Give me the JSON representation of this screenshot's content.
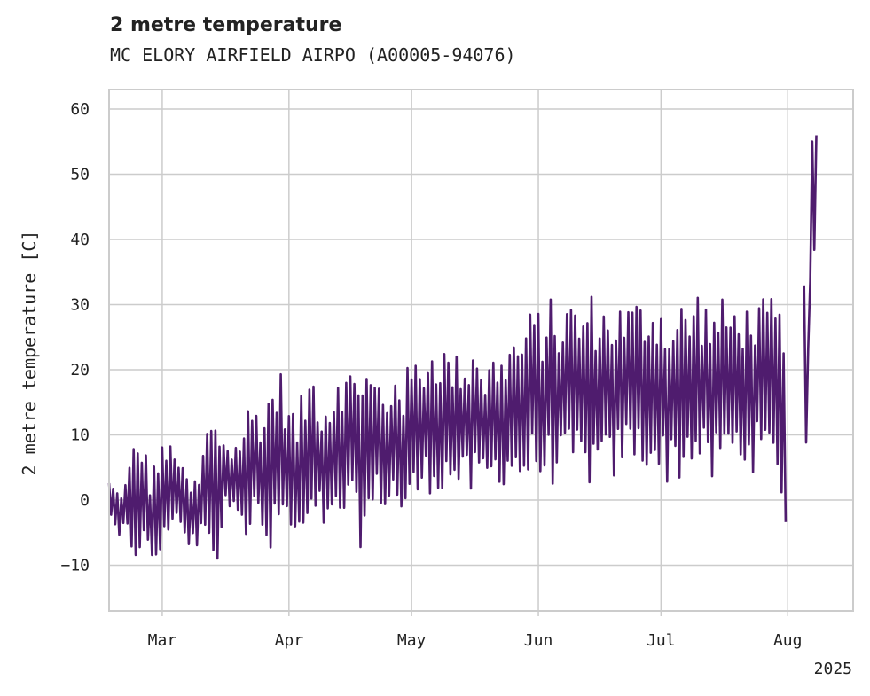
{
  "chart_data": {
    "type": "line",
    "title": "2 metre temperature",
    "subtitle": "MC ELORY AIRFIELD AIRPO (A00005-94076)",
    "xlabel": "",
    "ylabel": "2 metre temperature [C]",
    "year_label": "2025",
    "xlim": [
      "2025-02-16",
      "2025-08-17"
    ],
    "ylim": [
      -17,
      63
    ],
    "yticks": [
      -10,
      0,
      10,
      20,
      30,
      40,
      50,
      60
    ],
    "ytick_labels": [
      "−10",
      "0",
      "10",
      "20",
      "30",
      "40",
      "50",
      "60"
    ],
    "xticks": [
      "2025-03-01",
      "2025-04-01",
      "2025-05-01",
      "2025-06-01",
      "2025-07-01",
      "2025-08-01"
    ],
    "xtick_labels": [
      "Mar",
      "Apr",
      "May",
      "Jun",
      "Jul",
      "Aug"
    ],
    "grid": true,
    "legend": "none",
    "colors": {
      "line": "#4f1c6e",
      "grid": "#cccccc",
      "frame": "#cccccc"
    },
    "series": [
      {
        "x": [
          "2025-02-16",
          "2025-02-18",
          "2025-02-20",
          "2025-02-22",
          "2025-02-24",
          "2025-02-26",
          "2025-02-28",
          "2025-03-02",
          "2025-03-04",
          "2025-03-06",
          "2025-03-08",
          "2025-03-10",
          "2025-03-12",
          "2025-03-14",
          "2025-03-16",
          "2025-03-18",
          "2025-03-20",
          "2025-03-22",
          "2025-03-24",
          "2025-03-26",
          "2025-03-28",
          "2025-03-30",
          "2025-04-01",
          "2025-04-03",
          "2025-04-05",
          "2025-04-07",
          "2025-04-09",
          "2025-04-11",
          "2025-04-13",
          "2025-04-15",
          "2025-04-17",
          "2025-04-19",
          "2025-04-21",
          "2025-04-23",
          "2025-04-25",
          "2025-04-27",
          "2025-04-29",
          "2025-05-01",
          "2025-05-03",
          "2025-05-05",
          "2025-05-07",
          "2025-05-09",
          "2025-05-11",
          "2025-05-13",
          "2025-05-15",
          "2025-05-17",
          "2025-05-19",
          "2025-05-21",
          "2025-05-23",
          "2025-05-25",
          "2025-05-27",
          "2025-05-29",
          "2025-05-31",
          "2025-06-02",
          "2025-06-04",
          "2025-06-06",
          "2025-06-08",
          "2025-06-10",
          "2025-06-12",
          "2025-06-14",
          "2025-06-16",
          "2025-06-18",
          "2025-06-20",
          "2025-06-22",
          "2025-06-24",
          "2025-06-26",
          "2025-06-28",
          "2025-06-30",
          "2025-07-02",
          "2025-07-04",
          "2025-07-06",
          "2025-07-08",
          "2025-07-10",
          "2025-07-12",
          "2025-07-14",
          "2025-07-16",
          "2025-07-18",
          "2025-07-20",
          "2025-07-22",
          "2025-07-24",
          "2025-07-26",
          "2025-07-28",
          "2025-07-30",
          "2025-07-31",
          "2025-08-01",
          "2025-08-05",
          "2025-08-06",
          "2025-08-07",
          "2025-08-08"
        ],
        "y_min": [
          -1,
          -8,
          -5,
          -10,
          -8,
          -11,
          -10,
          -8,
          -2,
          -6,
          -8,
          -8,
          -3,
          -13,
          -4,
          0,
          -2,
          -8,
          -3,
          -9,
          -10,
          -5,
          -5,
          -10,
          -6,
          -7,
          -4,
          -8,
          -5,
          -3,
          -5,
          -8,
          -4,
          -1,
          -2,
          -1,
          -4,
          -2,
          0,
          1,
          1,
          1,
          2,
          1,
          0,
          0,
          2,
          2,
          2,
          3,
          2,
          2,
          3,
          2,
          2,
          3,
          2,
          4,
          2,
          2,
          2,
          2,
          3,
          5,
          6,
          4,
          5,
          3,
          2,
          4,
          2,
          6,
          4,
          2,
          2,
          5,
          5,
          5,
          5,
          4,
          5,
          3,
          5,
          -9,
          -8,
          -8,
          19,
          44,
          31
        ],
        "y_max": [
          3,
          2,
          3,
          9,
          10,
          5,
          8,
          9,
          9,
          5,
          3,
          4,
          12,
          13,
          11,
          8,
          10,
          15,
          15,
          15,
          20,
          20,
          15,
          14,
          18,
          21,
          16,
          17,
          22,
          20,
          21,
          23,
          20,
          19,
          15,
          22,
          19,
          22,
          22,
          24,
          24,
          24,
          22,
          23,
          23,
          26,
          20,
          23,
          22,
          26,
          25,
          28,
          30,
          29,
          31,
          29,
          31,
          31,
          30,
          32,
          31,
          30,
          31,
          30,
          31,
          31,
          31,
          32,
          30,
          28,
          31,
          30,
          33,
          31,
          30,
          31,
          30,
          31,
          30,
          31,
          31,
          31,
          30,
          26,
          26,
          34,
          25,
          59,
          56
        ]
      }
    ]
  }
}
